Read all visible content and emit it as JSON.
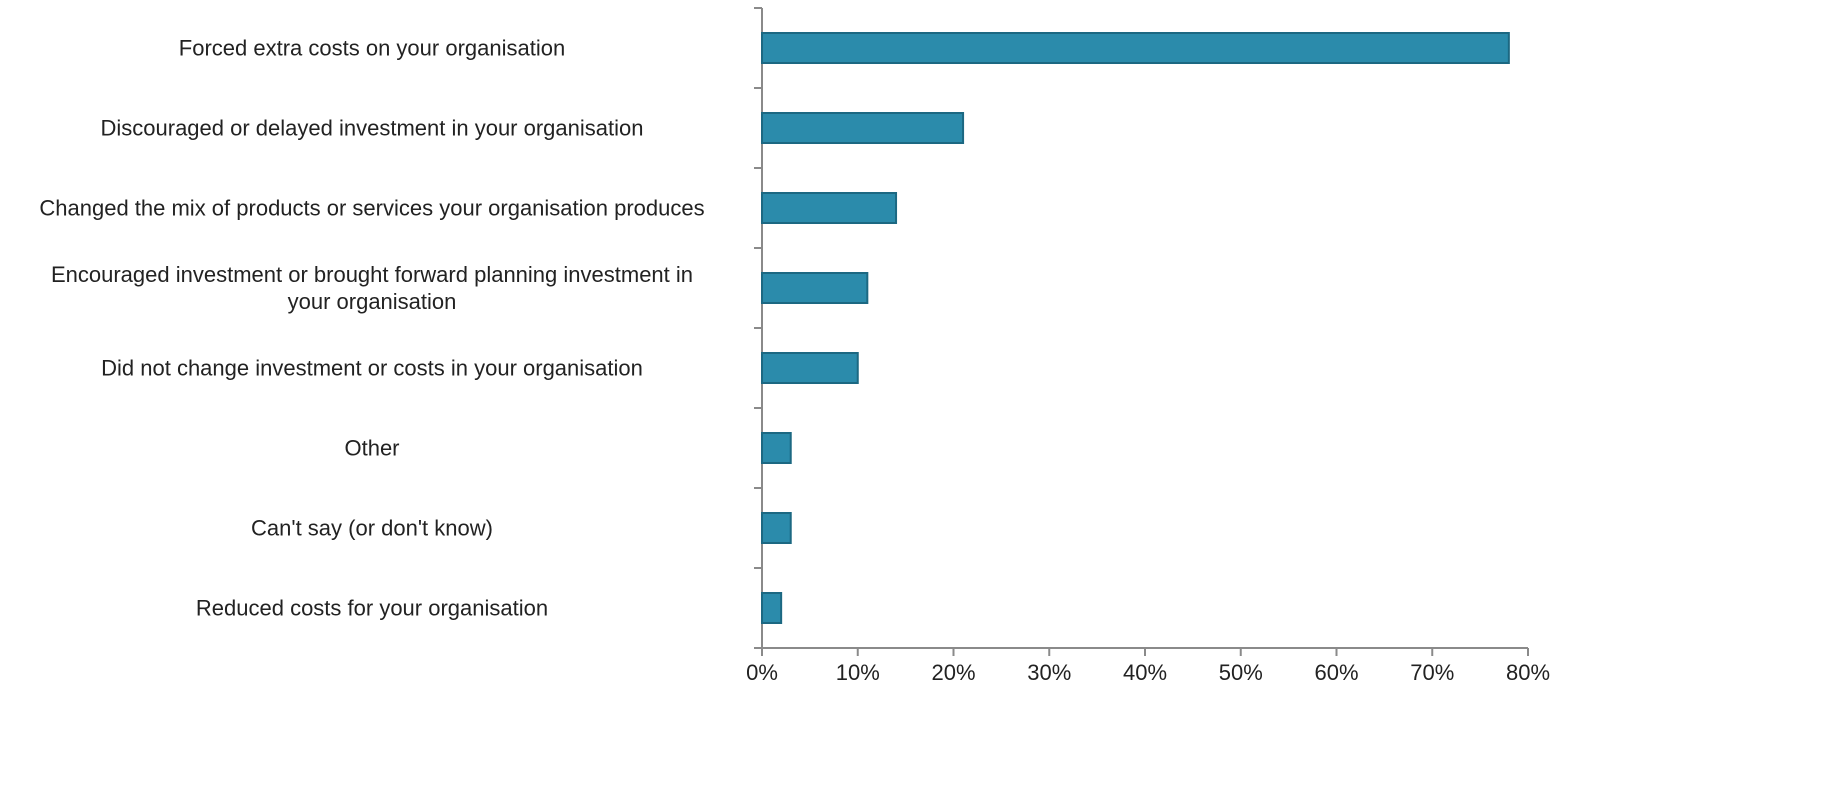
{
  "chart_data": {
    "type": "bar",
    "orientation": "horizontal",
    "categories": [
      "Forced extra costs on your organisation",
      "Discouraged or delayed investment in your organisation",
      "Changed the mix of products or services your organisation produces",
      "Encouraged investment or brought forward planning investment in\nyour organisation",
      "Did not change investment or costs in your organisation",
      "Other",
      "Can't say (or don't know)",
      "Reduced costs for your organisation"
    ],
    "values": [
      78,
      21,
      14,
      11,
      10,
      3,
      3,
      2
    ],
    "color": "#2b8bab",
    "xlim": [
      0,
      80
    ],
    "xticks": [
      {
        "value": 0,
        "label": "0%"
      },
      {
        "value": 10,
        "label": "10%"
      },
      {
        "value": 20,
        "label": "20%"
      },
      {
        "value": 30,
        "label": "30%"
      },
      {
        "value": 40,
        "label": "40%"
      },
      {
        "value": 50,
        "label": "50%"
      },
      {
        "value": 60,
        "label": "60%"
      },
      {
        "value": 70,
        "label": "70%"
      },
      {
        "value": 80,
        "label": "80%"
      }
    ],
    "grid": false
  }
}
